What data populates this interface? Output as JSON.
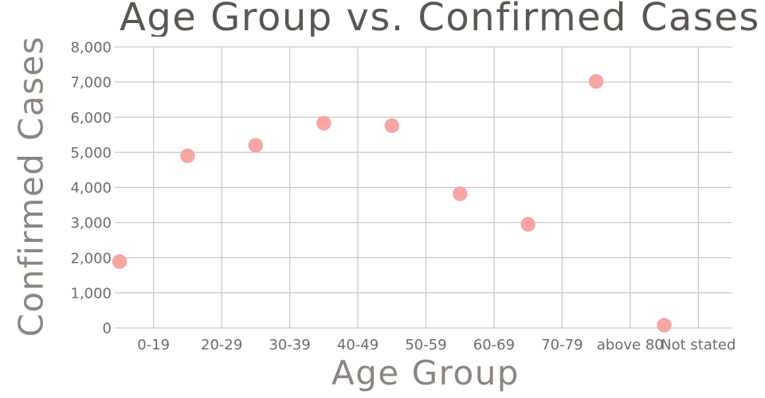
{
  "page": {
    "background": "#ffffff"
  },
  "chart_data": {
    "type": "scatter",
    "title": "Age Group vs. Confirmed Cases",
    "xlabel": "Age Group",
    "ylabel": "Confirmed Cases",
    "categories": [
      "0-19",
      "20-29",
      "30-39",
      "40-49",
      "50-59",
      "60-69",
      "70-79",
      "above 80",
      "Not stated"
    ],
    "series": [
      {
        "name": "Confirmed Cases",
        "values": [
          1890,
          4900,
          5200,
          5830,
          5760,
          3820,
          2950,
          7020,
          80
        ]
      }
    ],
    "ylim": [
      0,
      8000
    ],
    "ytick_interval": 1000,
    "ytick_values": [
      0,
      1000,
      2000,
      3000,
      4000,
      5000,
      6000,
      7000,
      8000
    ],
    "ytick_labels": [
      "0",
      "1,000",
      "2,000",
      "3,000",
      "4,000",
      "5,000",
      "6,000",
      "7,000",
      "8,000"
    ],
    "grid": true,
    "legend": false,
    "point_shape": "circle",
    "layout_hints": {
      "points_offset_half_band_left_of_labels": true,
      "title_clipped_at_right_edge": true
    },
    "colors": {
      "point": "#f7a6a4",
      "grid": "#ccc9c6",
      "tick_text": "#6f6a64",
      "title_text": "#5b5650",
      "axis_title_text": "#8b857e",
      "background": "#ffffff"
    }
  }
}
